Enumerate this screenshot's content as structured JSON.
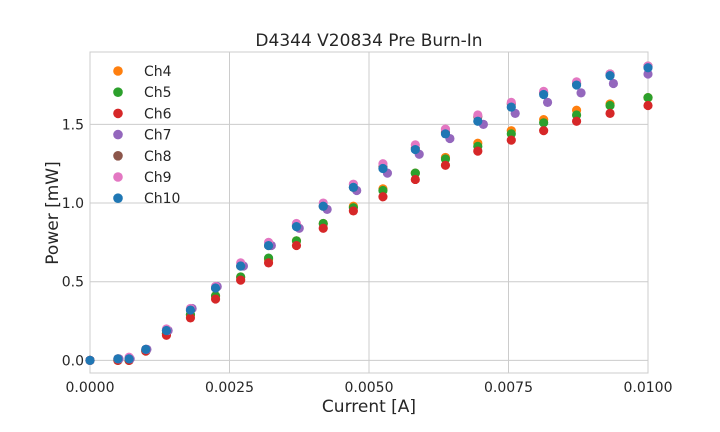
{
  "chart_data": {
    "type": "scatter",
    "title": "D4344 V20834 Pre Burn-In",
    "xlabel": "Current [A]",
    "ylabel": "Power [mW]",
    "xlim": [
      0.0,
      0.01
    ],
    "ylim": [
      -0.08,
      1.96
    ],
    "xticks": [
      0.0,
      0.0025,
      0.005,
      0.0075,
      0.01
    ],
    "xtick_labels": [
      "0.0000",
      "0.0025",
      "0.0050",
      "0.0075",
      "0.0100"
    ],
    "yticks": [
      0.0,
      0.5,
      1.0,
      1.5
    ],
    "ytick_labels": [
      "0.0",
      "0.5",
      "1.0",
      "1.5"
    ],
    "grid": true,
    "legend_position": "top-left",
    "series": [
      {
        "name": "Ch4",
        "color": "#ff7f0e",
        "points": [
          [
            0.0,
            0.0
          ],
          [
            0.0005,
            0.0
          ],
          [
            0.0007,
            0.0
          ],
          [
            0.001,
            0.06
          ],
          [
            0.00137,
            0.17
          ],
          [
            0.0018,
            0.29
          ],
          [
            0.00225,
            0.41
          ],
          [
            0.0027,
            0.53
          ],
          [
            0.0032,
            0.64
          ],
          [
            0.0037,
            0.76
          ],
          [
            0.00418,
            0.87
          ],
          [
            0.00472,
            0.98
          ],
          [
            0.00525,
            1.09
          ],
          [
            0.00583,
            1.19
          ],
          [
            0.00637,
            1.29
          ],
          [
            0.00695,
            1.38
          ],
          [
            0.00755,
            1.46
          ],
          [
            0.00813,
            1.53
          ],
          [
            0.00872,
            1.59
          ],
          [
            0.00932,
            1.63
          ],
          [
            0.01,
            1.67
          ]
        ]
      },
      {
        "name": "Ch5",
        "color": "#2ca02c",
        "points": [
          [
            0.0,
            0.0
          ],
          [
            0.0005,
            0.0
          ],
          [
            0.0007,
            0.0
          ],
          [
            0.001,
            0.06
          ],
          [
            0.00137,
            0.17
          ],
          [
            0.0018,
            0.29
          ],
          [
            0.00225,
            0.41
          ],
          [
            0.0027,
            0.53
          ],
          [
            0.0032,
            0.65
          ],
          [
            0.0037,
            0.76
          ],
          [
            0.00418,
            0.87
          ],
          [
            0.00472,
            0.97
          ],
          [
            0.00525,
            1.08
          ],
          [
            0.00583,
            1.19
          ],
          [
            0.00637,
            1.28
          ],
          [
            0.00695,
            1.36
          ],
          [
            0.00755,
            1.44
          ],
          [
            0.00813,
            1.51
          ],
          [
            0.00872,
            1.56
          ],
          [
            0.00932,
            1.62
          ],
          [
            0.01,
            1.67
          ]
        ]
      },
      {
        "name": "Ch6",
        "color": "#d62728",
        "points": [
          [
            0.0,
            0.0
          ],
          [
            0.0005,
            0.0
          ],
          [
            0.0007,
            0.0
          ],
          [
            0.001,
            0.06
          ],
          [
            0.00137,
            0.16
          ],
          [
            0.0018,
            0.27
          ],
          [
            0.00225,
            0.39
          ],
          [
            0.0027,
            0.51
          ],
          [
            0.0032,
            0.62
          ],
          [
            0.0037,
            0.73
          ],
          [
            0.00418,
            0.84
          ],
          [
            0.00472,
            0.95
          ],
          [
            0.00525,
            1.04
          ],
          [
            0.00583,
            1.15
          ],
          [
            0.00637,
            1.24
          ],
          [
            0.00695,
            1.33
          ],
          [
            0.00755,
            1.4
          ],
          [
            0.00813,
            1.46
          ],
          [
            0.00872,
            1.52
          ],
          [
            0.00932,
            1.57
          ],
          [
            0.01,
            1.62
          ]
        ]
      },
      {
        "name": "Ch7",
        "color": "#9467bd",
        "points": [
          [
            0.0,
            0.0
          ],
          [
            0.00052,
            0.01
          ],
          [
            0.00072,
            0.01
          ],
          [
            0.00102,
            0.07
          ],
          [
            0.0014,
            0.19
          ],
          [
            0.00183,
            0.33
          ],
          [
            0.00228,
            0.47
          ],
          [
            0.00275,
            0.6
          ],
          [
            0.00325,
            0.73
          ],
          [
            0.00375,
            0.84
          ],
          [
            0.00425,
            0.96
          ],
          [
            0.00478,
            1.08
          ],
          [
            0.00533,
            1.19
          ],
          [
            0.0059,
            1.31
          ],
          [
            0.00645,
            1.41
          ],
          [
            0.00705,
            1.5
          ],
          [
            0.00762,
            1.57
          ],
          [
            0.0082,
            1.64
          ],
          [
            0.0088,
            1.7
          ],
          [
            0.00938,
            1.76
          ],
          [
            0.01,
            1.82
          ]
        ]
      },
      {
        "name": "Ch8",
        "color": "#8c564b",
        "points": [
          [
            0.0,
            0.0
          ],
          [
            0.0005,
            0.01
          ],
          [
            0.0007,
            0.01
          ],
          [
            0.001,
            0.07
          ],
          [
            0.00137,
            0.19
          ],
          [
            0.0018,
            0.32
          ],
          [
            0.00225,
            0.46
          ],
          [
            0.0027,
            0.6
          ],
          [
            0.0032,
            0.73
          ],
          [
            0.0037,
            0.86
          ],
          [
            0.00418,
            0.98
          ],
          [
            0.00472,
            1.1
          ],
          [
            0.00525,
            1.23
          ],
          [
            0.00583,
            1.35
          ],
          [
            0.00637,
            1.45
          ],
          [
            0.00695,
            1.55
          ],
          [
            0.00755,
            1.63
          ],
          [
            0.00813,
            1.7
          ],
          [
            0.00872,
            1.76
          ],
          [
            0.00932,
            1.82
          ],
          [
            0.01,
            1.87
          ]
        ]
      },
      {
        "name": "Ch9",
        "color": "#e377c2",
        "points": [
          [
            0.0,
            0.0
          ],
          [
            0.0005,
            0.01
          ],
          [
            0.0007,
            0.02
          ],
          [
            0.001,
            0.07
          ],
          [
            0.00137,
            0.2
          ],
          [
            0.0018,
            0.33
          ],
          [
            0.00225,
            0.47
          ],
          [
            0.0027,
            0.62
          ],
          [
            0.0032,
            0.75
          ],
          [
            0.0037,
            0.87
          ],
          [
            0.00418,
            1.0
          ],
          [
            0.00472,
            1.12
          ],
          [
            0.00525,
            1.25
          ],
          [
            0.00583,
            1.37
          ],
          [
            0.00637,
            1.47
          ],
          [
            0.00695,
            1.56
          ],
          [
            0.00755,
            1.64
          ],
          [
            0.00813,
            1.71
          ],
          [
            0.00872,
            1.77
          ],
          [
            0.00932,
            1.82
          ],
          [
            0.01,
            1.87
          ]
        ]
      },
      {
        "name": "Ch10",
        "color": "#1f77b4",
        "points": [
          [
            0.0,
            0.0
          ],
          [
            0.0005,
            0.01
          ],
          [
            0.0007,
            0.01
          ],
          [
            0.001,
            0.07
          ],
          [
            0.00137,
            0.19
          ],
          [
            0.0018,
            0.32
          ],
          [
            0.00225,
            0.46
          ],
          [
            0.0027,
            0.6
          ],
          [
            0.0032,
            0.73
          ],
          [
            0.0037,
            0.85
          ],
          [
            0.00418,
            0.98
          ],
          [
            0.00472,
            1.1
          ],
          [
            0.00525,
            1.22
          ],
          [
            0.00583,
            1.34
          ],
          [
            0.00637,
            1.44
          ],
          [
            0.00695,
            1.52
          ],
          [
            0.00755,
            1.61
          ],
          [
            0.00813,
            1.69
          ],
          [
            0.00872,
            1.75
          ],
          [
            0.00932,
            1.81
          ],
          [
            0.01,
            1.86
          ]
        ]
      }
    ]
  }
}
